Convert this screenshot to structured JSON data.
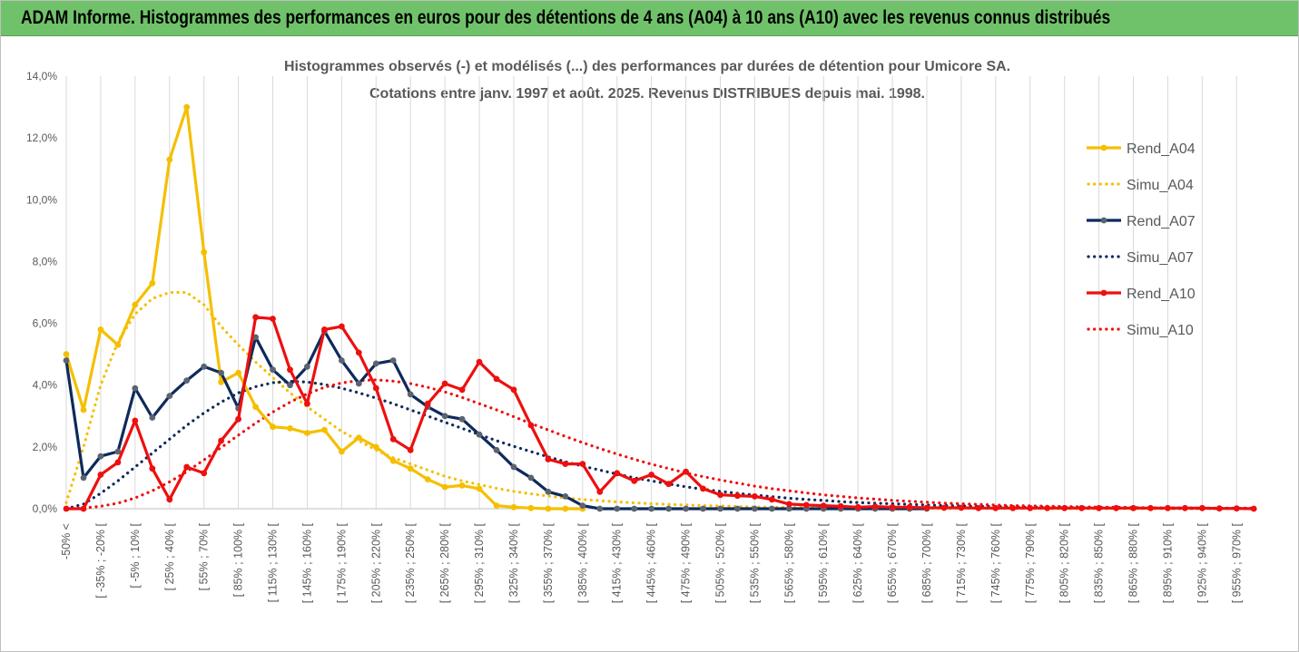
{
  "banner": {
    "title": "ADAM Informe. Histogrammes des performances en euros pour des détentions de 4 ans (A04) à 10 ans (A10) avec les revenus connus distribués"
  },
  "colors": {
    "a04": "#f5bf00",
    "a07": "#0e2a5c",
    "a10": "#ee0f0f",
    "banner": "#70c26a",
    "grid": "#d9d9d9",
    "marker_a07": "#5a6470"
  },
  "chart_data": {
    "type": "line",
    "title": "Histogrammes observés (-) et modélisés (...) des performances par durées de détention pour Umicore SA.",
    "subtitle": "Cotations entre janv. 1997 et août. 2025. Revenus DISTRIBUES depuis mai. 1998.",
    "xlabel": "",
    "ylabel": "",
    "ylim": [
      0,
      14
    ],
    "grid": "vertical",
    "legend": "right",
    "y_ticks": [
      "0,0%",
      "2,0%",
      "4,0%",
      "6,0%",
      "8,0%",
      "10,0%",
      "12,0%",
      "14,0%"
    ],
    "x_tick_labels": [
      "-50% <",
      "[ -35% ; -20% [",
      "[ -5% ; 10% [",
      "[ 25% ; 40% [",
      "[ 55% ; 70% [",
      "[ 85% ; 100% [",
      "[ 115% ; 130% [",
      "[ 145% ; 160% [",
      "[ 175% ; 190% [",
      "[ 205% ; 220% [",
      "[ 235% ; 250% [",
      "[ 265% ; 280% [",
      "[ 295% ; 310% [",
      "[ 325% ; 340% [",
      "[ 355% ; 370% [",
      "[ 385% ; 400% [",
      "[ 415% ; 430% [",
      "[ 445% ; 460% [",
      "[ 475% ; 490% [",
      "[ 505% ; 520% [",
      "[ 535% ; 550% [",
      "[ 565% ; 580% [",
      "[ 595% ; 610% [",
      "[ 625% ; 640% [",
      "[ 655% ; 670% [",
      "[ 685% ; 700% [",
      "[ 715% ; 730% [",
      "[ 745% ; 760% [",
      "[ 775% ; 790% [",
      "[ 805% ; 820% [",
      "[ 835% ; 850% [",
      "[ 865% ; 880% [",
      "[ 895% ; 910% [",
      "[ 925% ; 940% [",
      "[ 955% ; 970% ["
    ],
    "series": [
      {
        "name": "Rend_A04",
        "style": "solid",
        "values": [
          5.0,
          3.2,
          5.8,
          5.3,
          6.6,
          7.3,
          11.3,
          13.0,
          8.3,
          4.1,
          4.4,
          3.3,
          2.65,
          2.6,
          2.45,
          2.55,
          1.85,
          2.3,
          2.0,
          1.55,
          1.3,
          0.95,
          0.7,
          0.75,
          0.65,
          0.1,
          0.05,
          0.02,
          0,
          0,
          0
        ]
      },
      {
        "name": "Simu_A04",
        "style": "dotted",
        "values": [
          0.2,
          2.0,
          4.0,
          5.4,
          6.3,
          6.8,
          7.0,
          7.0,
          6.6,
          5.9,
          5.3,
          4.75,
          4.25,
          3.75,
          3.3,
          2.9,
          2.5,
          2.2,
          1.9,
          1.65,
          1.45,
          1.25,
          1.05,
          0.9,
          0.78,
          0.66,
          0.56,
          0.48,
          0.41,
          0.35,
          0.3,
          0.26,
          0.22,
          0.19,
          0.16,
          0.14,
          0.12,
          0.1,
          0.09,
          0.07,
          0.06,
          0.05,
          0.04,
          0.04,
          0.03,
          0.03,
          0.02,
          0.02,
          0.02,
          0.01,
          0.01,
          0.01,
          0.01,
          0.01,
          0.01,
          0.01,
          0.01,
          0.0,
          0.0,
          0.0,
          0.0,
          0.0,
          0.0,
          0.0,
          0.0,
          0.0,
          0.0,
          0.0,
          0.0,
          0.0
        ]
      },
      {
        "name": "Rend_A07",
        "style": "solid",
        "values": [
          4.8,
          1.0,
          1.7,
          1.85,
          3.9,
          2.95,
          3.65,
          4.15,
          4.6,
          4.4,
          3.25,
          5.55,
          4.5,
          4.0,
          4.6,
          5.75,
          4.8,
          4.05,
          4.7,
          4.8,
          3.7,
          3.3,
          3.0,
          2.9,
          2.4,
          1.9,
          1.35,
          1.0,
          0.55,
          0.4,
          0.1,
          0,
          0,
          0,
          0,
          0,
          0,
          0,
          0,
          0,
          0,
          0,
          0,
          0,
          0,
          0,
          0,
          0,
          0,
          0,
          0
        ]
      },
      {
        "name": "Simu_A07",
        "style": "dotted",
        "values": [
          0.0,
          0.15,
          0.5,
          0.9,
          1.35,
          1.8,
          2.25,
          2.7,
          3.1,
          3.45,
          3.75,
          3.95,
          4.08,
          4.12,
          4.1,
          4.02,
          3.9,
          3.75,
          3.58,
          3.4,
          3.2,
          3.0,
          2.8,
          2.6,
          2.4,
          2.2,
          2.02,
          1.85,
          1.68,
          1.52,
          1.38,
          1.25,
          1.12,
          1.0,
          0.9,
          0.8,
          0.71,
          0.63,
          0.56,
          0.5,
          0.44,
          0.39,
          0.34,
          0.3,
          0.27,
          0.23,
          0.2,
          0.18,
          0.16,
          0.14,
          0.12,
          0.1,
          0.09,
          0.08,
          0.07,
          0.06,
          0.05,
          0.04,
          0.04,
          0.03,
          0.03,
          0.02,
          0.02,
          0.02,
          0.01,
          0.01,
          0.01,
          0.01,
          0.01,
          0.01
        ]
      },
      {
        "name": "Rend_A10",
        "style": "solid",
        "values": [
          0.0,
          0.0,
          1.1,
          1.5,
          2.85,
          1.3,
          0.3,
          1.35,
          1.15,
          2.2,
          2.9,
          6.2,
          6.15,
          4.5,
          3.4,
          5.8,
          5.9,
          5.05,
          3.9,
          2.25,
          1.9,
          3.4,
          4.05,
          3.85,
          4.75,
          4.2,
          3.85,
          2.7,
          1.6,
          1.45,
          1.45,
          0.55,
          1.15,
          0.9,
          1.1,
          0.8,
          1.2,
          0.65,
          0.45,
          0.42,
          0.4,
          0.3,
          0.15,
          0.12,
          0.1,
          0.08,
          0.05,
          0.07,
          0.05,
          0.05,
          0.03,
          0.03,
          0.03,
          0.02,
          0.02,
          0.02,
          0.02,
          0.02,
          0.02,
          0.02,
          0.02,
          0.02,
          0.02,
          0.02,
          0.02,
          0.02,
          0.02,
          0.01,
          0.01,
          0.0
        ]
      },
      {
        "name": "Simu_A10",
        "style": "dotted",
        "values": [
          0.0,
          0.02,
          0.08,
          0.18,
          0.35,
          0.58,
          0.87,
          1.2,
          1.58,
          1.98,
          2.38,
          2.77,
          3.13,
          3.45,
          3.72,
          3.93,
          4.07,
          4.15,
          4.17,
          4.13,
          4.05,
          3.93,
          3.78,
          3.6,
          3.4,
          3.2,
          2.98,
          2.76,
          2.55,
          2.34,
          2.14,
          1.95,
          1.77,
          1.6,
          1.44,
          1.3,
          1.16,
          1.04,
          0.93,
          0.83,
          0.73,
          0.65,
          0.58,
          0.51,
          0.45,
          0.4,
          0.35,
          0.31,
          0.27,
          0.24,
          0.21,
          0.18,
          0.16,
          0.14,
          0.12,
          0.1,
          0.09,
          0.08,
          0.07,
          0.06,
          0.05,
          0.05,
          0.04,
          0.03,
          0.03,
          0.03,
          0.02,
          0.02,
          0.02,
          0.02
        ]
      }
    ]
  }
}
